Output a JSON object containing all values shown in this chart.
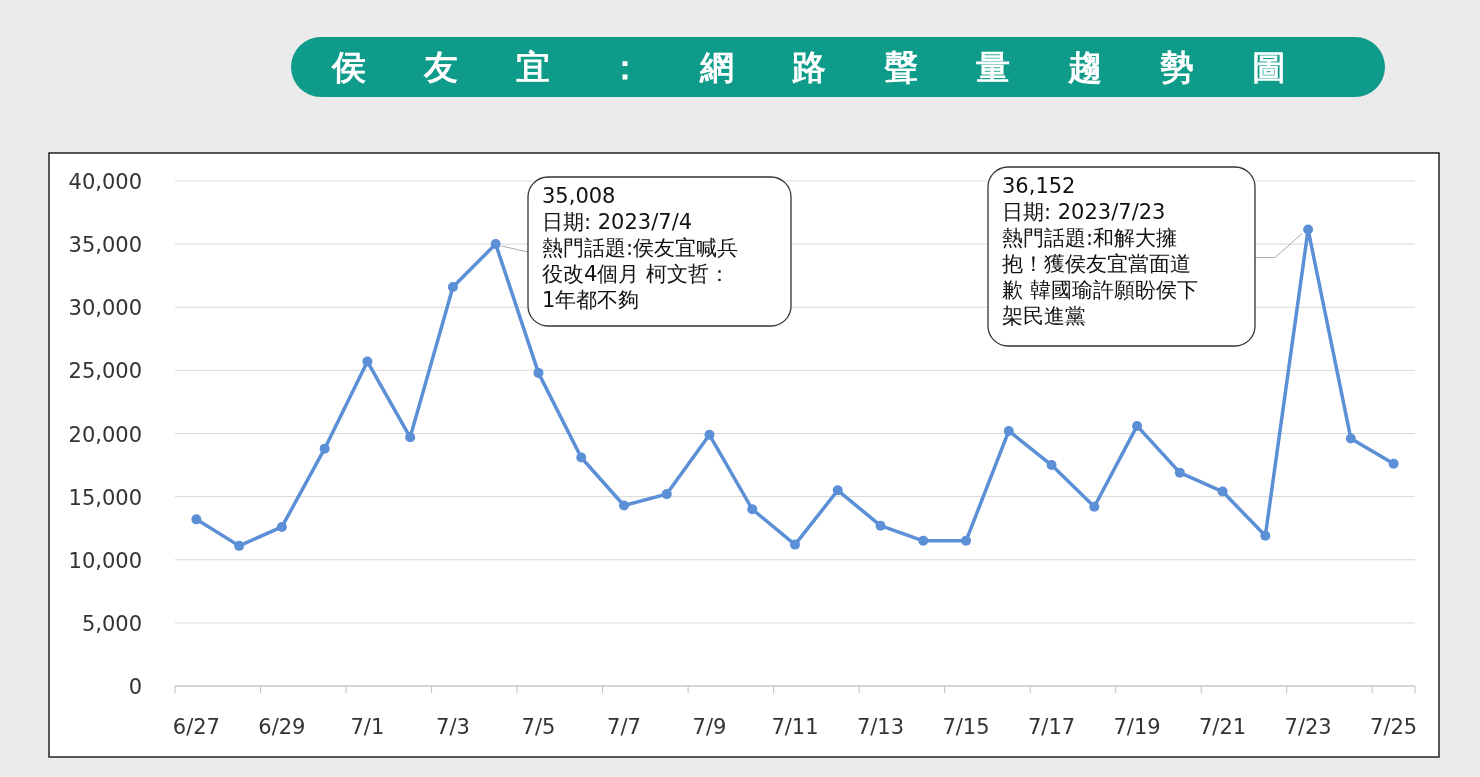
{
  "chart_data": {
    "type": "line",
    "title": "侯友宜：網路聲量趨勢圖",
    "categories": [
      "6/27",
      null,
      "6/29",
      null,
      "7/1",
      null,
      "7/3",
      null,
      "7/5",
      null,
      "7/7",
      null,
      "7/9",
      null,
      "7/11",
      null,
      "7/13",
      null,
      "7/15",
      null,
      "7/17",
      null,
      "7/19",
      null,
      "7/21",
      null,
      "7/23",
      null,
      "7/25"
    ],
    "series": [
      {
        "color": "#5b8fd6",
        "values": [
          13200,
          11100,
          12600,
          18800,
          25700,
          19700,
          31600,
          35008,
          24800,
          18100,
          14300,
          15200,
          19900,
          14000,
          11200,
          15500,
          12700,
          11500,
          11500,
          20200,
          17500,
          14200,
          20600,
          16900,
          15400,
          11900,
          36152,
          19600,
          17600
        ]
      }
    ],
    "ylim": [
      0,
      40000
    ],
    "yticks": [
      {
        "value": 0,
        "label": "0"
      },
      {
        "value": 5000,
        "label": "5,000"
      },
      {
        "value": 10000,
        "label": "10,000"
      },
      {
        "value": 15000,
        "label": "15,000"
      },
      {
        "value": 20000,
        "label": "20,000"
      },
      {
        "value": 25000,
        "label": "25,000"
      },
      {
        "value": 30000,
        "label": "30,000"
      },
      {
        "value": 35000,
        "label": "35,000"
      },
      {
        "value": 40000,
        "label": "40,000"
      }
    ],
    "grid": "y",
    "marker": "circle",
    "annotations": [
      "35,008\n日期: 2023/7/4\n熱門話題:侯友宜喊兵役改4個月 柯文哲：1年都不夠",
      "36,152\n日期: 2023/7/23\n熱門話題:和解大擁抱！獲侯友宜當面道歉 韓國瑜許願盼侯下架民進黨"
    ]
  }
}
